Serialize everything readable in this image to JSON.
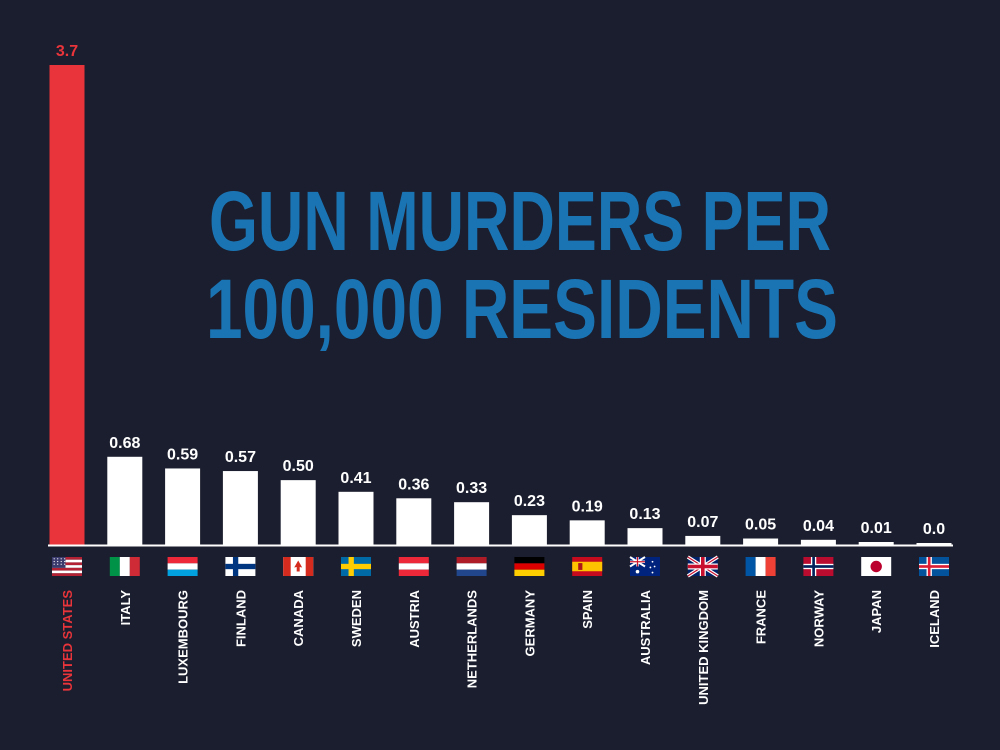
{
  "chart_data": {
    "type": "bar",
    "title_lines": [
      "GUN MURDERS PER",
      "100,000 RESIDENTS"
    ],
    "xlabel": "",
    "ylabel": "",
    "categories": [
      "UNITED STATES",
      "ITALY",
      "LUXEMBOURG",
      "FINLAND",
      "CANADA",
      "SWEDEN",
      "AUSTRIA",
      "NETHERLANDS",
      "GERMANY",
      "SPAIN",
      "AUSTRALIA",
      "UNITED KINGDOM",
      "FRANCE",
      "NORWAY",
      "JAPAN",
      "ICELAND"
    ],
    "values": [
      3.7,
      0.68,
      0.59,
      0.57,
      0.5,
      0.41,
      0.36,
      0.33,
      0.23,
      0.19,
      0.13,
      0.07,
      0.05,
      0.04,
      0.01,
      0.0
    ],
    "value_labels": [
      "3.7",
      "0.68",
      "0.59",
      "0.57",
      "0.50",
      "0.41",
      "0.36",
      "0.33",
      "0.23",
      "0.19",
      "0.13",
      "0.07",
      "0.05",
      "0.04",
      "0.01",
      "0.0"
    ],
    "flag_icons": [
      "us-flag-icon",
      "italy-flag-icon",
      "luxembourg-flag-icon",
      "finland-flag-icon",
      "canada-flag-icon",
      "sweden-flag-icon",
      "austria-flag-icon",
      "netherlands-flag-icon",
      "germany-flag-icon",
      "spain-flag-icon",
      "australia-flag-icon",
      "uk-flag-icon",
      "france-flag-icon",
      "norway-flag-icon",
      "japan-flag-icon",
      "iceland-flag-icon"
    ],
    "ylim": [
      0,
      3.7
    ],
    "grid": false,
    "legend": "none",
    "highlight_index": 0,
    "colors": {
      "background": "#1b1e2e",
      "highlight": "#e8343a",
      "bar": "#ffffff",
      "title": "#1a74b4",
      "label": "#ffffff",
      "baseline": "#ffffff"
    }
  }
}
